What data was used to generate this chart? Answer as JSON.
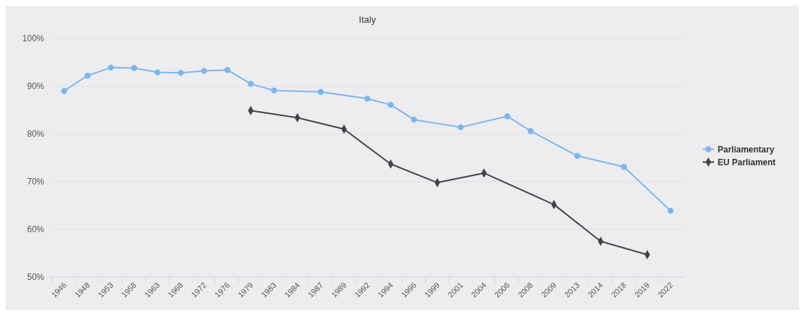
{
  "chart_data": {
    "type": "line",
    "title": "Italy",
    "categories": [
      "1946",
      "1948",
      "1953",
      "1958",
      "1963",
      "1968",
      "1972",
      "1976",
      "1979",
      "1983",
      "1984",
      "1987",
      "1989",
      "1992",
      "1994",
      "1996",
      "1999",
      "2001",
      "2004",
      "2006",
      "2008",
      "2009",
      "2013",
      "2014",
      "2018",
      "2019",
      "2022"
    ],
    "series": [
      {
        "name": "Parliamentary",
        "color": "#7cb5ec",
        "marker": "circle",
        "values": [
          89.0,
          92.2,
          93.9,
          93.8,
          92.9,
          92.8,
          93.2,
          93.4,
          90.5,
          89.1,
          null,
          88.8,
          null,
          87.4,
          86.1,
          83.0,
          null,
          81.4,
          null,
          83.7,
          80.6,
          null,
          75.4,
          null,
          73.1,
          null,
          63.9
        ]
      },
      {
        "name": "EU Parliament",
        "color": "#434348",
        "marker": "diamond",
        "values": [
          null,
          null,
          null,
          null,
          null,
          null,
          null,
          null,
          84.9,
          null,
          83.4,
          null,
          81.0,
          null,
          73.7,
          null,
          69.8,
          null,
          71.8,
          null,
          null,
          65.2,
          null,
          57.5,
          null,
          54.7,
          null
        ]
      }
    ],
    "ylim": [
      50,
      100
    ],
    "yticks": [
      {
        "value": 50,
        "label": "50%"
      },
      {
        "value": 60,
        "label": "60%"
      },
      {
        "value": 70,
        "label": "70%"
      },
      {
        "value": 80,
        "label": "80%"
      },
      {
        "value": 90,
        "label": "90%"
      },
      {
        "value": 100,
        "label": "100%"
      }
    ],
    "grid": "y",
    "legend": "right"
  }
}
